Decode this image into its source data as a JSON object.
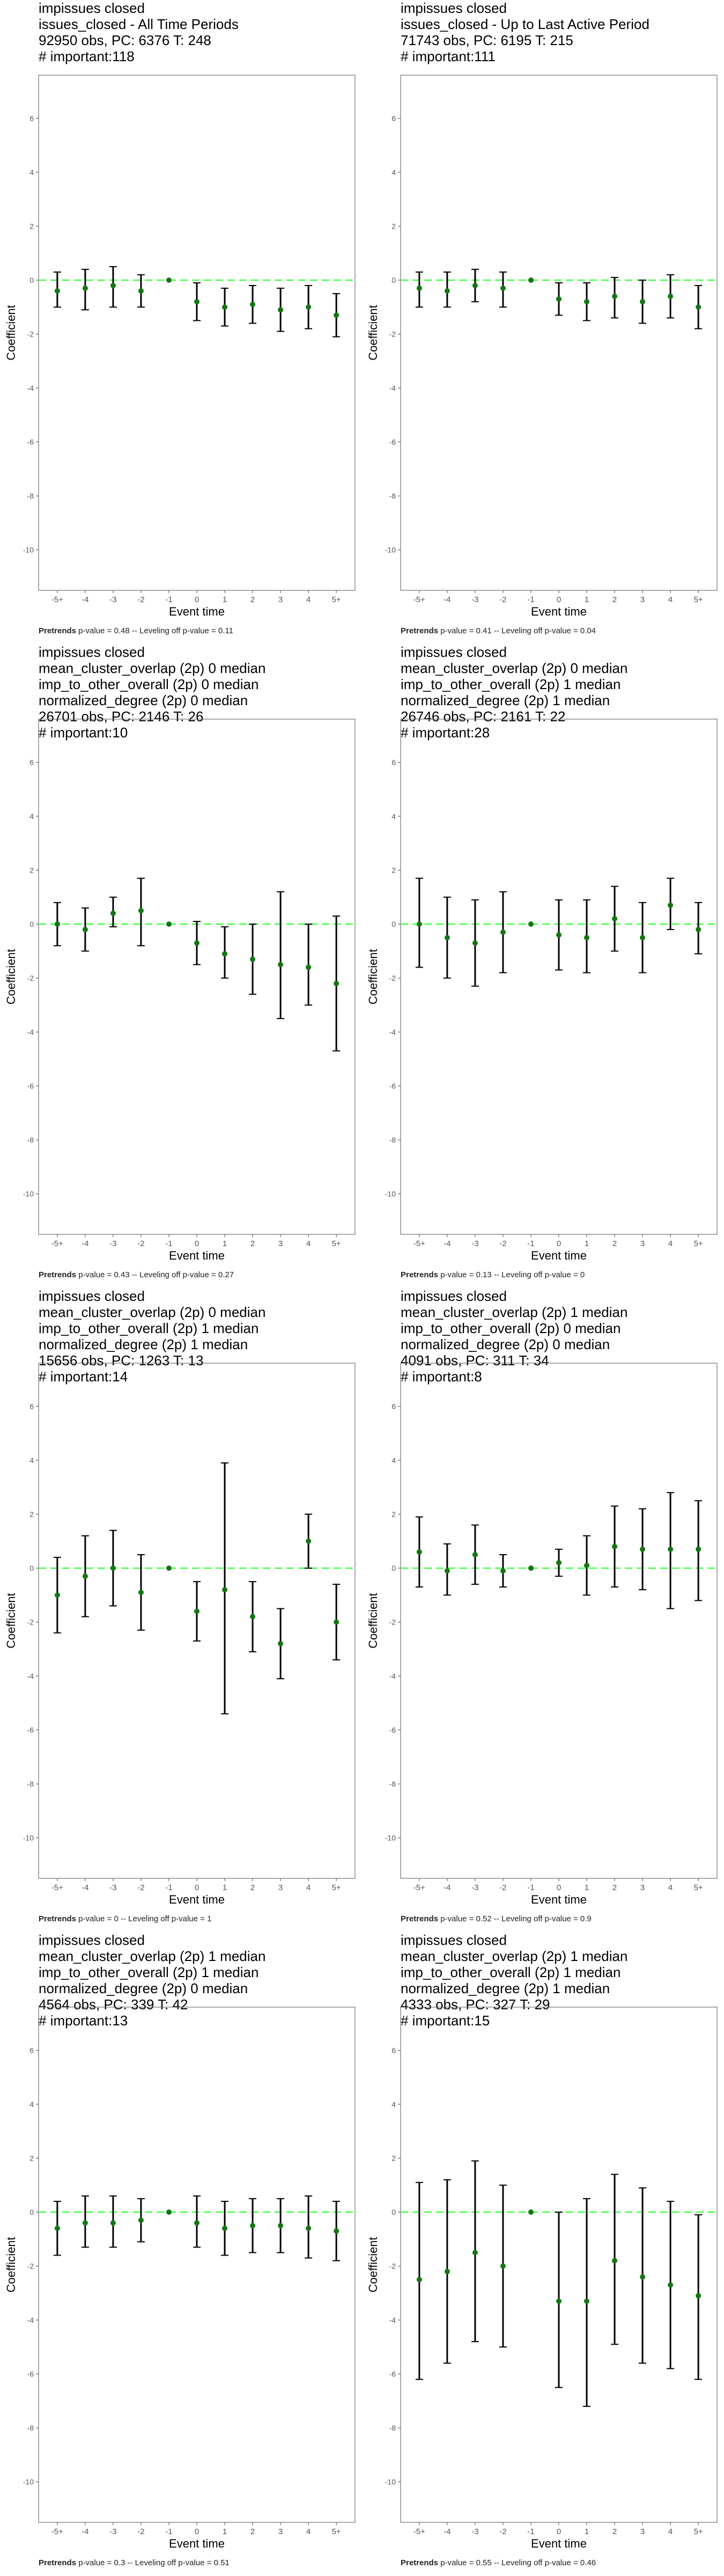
{
  "common": {
    "xlabel": "Event time",
    "ylabel": "Coefficient",
    "x_categories": [
      "-5+",
      "-4",
      "-3",
      "-2",
      "-1",
      "0",
      "1",
      "2",
      "3",
      "4",
      "5+"
    ],
    "yticks": [
      6,
      4,
      2,
      0,
      -2,
      -4,
      -6,
      -8,
      -10
    ],
    "ylim": [
      -11.5,
      7.6
    ],
    "point_color": "#117711",
    "zero_line_color": "#44ff44",
    "pretrends_label": "Pretrends"
  },
  "chart_data": [
    {
      "type": "scatter",
      "header": [
        "impissues closed",
        "issues_closed - All Time Periods",
        "92950 obs, PC: 6376 T: 248",
        "# important:118"
      ],
      "footer": " p-value = 0.48 -- Leveling off p-value = 0.11",
      "x": [
        "-5+",
        "-4",
        "-3",
        "-2",
        "-1",
        "0",
        "1",
        "2",
        "3",
        "4",
        "5+"
      ],
      "y": [
        -0.4,
        -0.3,
        -0.2,
        -0.4,
        0,
        -0.8,
        -1.0,
        -0.9,
        -1.1,
        -1.0,
        -1.3
      ],
      "low": [
        -1.0,
        -1.1,
        -1.0,
        -1.0,
        0,
        -1.5,
        -1.7,
        -1.6,
        -1.9,
        -1.8,
        -2.1
      ],
      "high": [
        0.3,
        0.4,
        0.5,
        0.2,
        0,
        -0.1,
        -0.3,
        -0.2,
        -0.3,
        -0.2,
        -0.5
      ]
    },
    {
      "type": "scatter",
      "header": [
        "impissues closed",
        "issues_closed - Up to Last Active Period",
        "71743 obs, PC: 6195 T: 215",
        "# important:111"
      ],
      "footer": " p-value = 0.41 -- Leveling off p-value = 0.04",
      "x": [
        "-5+",
        "-4",
        "-3",
        "-2",
        "-1",
        "0",
        "1",
        "2",
        "3",
        "4",
        "5+"
      ],
      "y": [
        -0.3,
        -0.4,
        -0.2,
        -0.3,
        0,
        -0.7,
        -0.8,
        -0.6,
        -0.8,
        -0.6,
        -1.0
      ],
      "low": [
        -1.0,
        -1.0,
        -0.8,
        -1.0,
        0,
        -1.3,
        -1.5,
        -1.4,
        -1.6,
        -1.4,
        -1.8
      ],
      "high": [
        0.3,
        0.3,
        0.4,
        0.3,
        0,
        -0.1,
        -0.1,
        0.1,
        0.0,
        0.2,
        -0.2
      ]
    },
    {
      "type": "scatter",
      "header": [
        "impissues closed",
        "mean_cluster_overlap (2p) 0 median",
        "imp_to_other_overall (2p) 0 median",
        "normalized_degree (2p) 0 median",
        "26701 obs, PC: 2146 T: 26",
        "# important:10"
      ],
      "footer": " p-value = 0.43 -- Leveling off p-value = 0.27",
      "x": [
        "-5+",
        "-4",
        "-3",
        "-2",
        "-1",
        "0",
        "1",
        "2",
        "3",
        "4",
        "5+"
      ],
      "y": [
        0.0,
        -0.2,
        0.4,
        0.5,
        0,
        -0.7,
        -1.1,
        -1.3,
        -1.5,
        -1.6,
        -2.2
      ],
      "low": [
        -0.8,
        -1.0,
        -0.1,
        -0.8,
        0,
        -1.5,
        -2.0,
        -2.6,
        -3.5,
        -3.0,
        -4.7
      ],
      "high": [
        0.8,
        0.6,
        1.0,
        1.7,
        0,
        0.1,
        -0.1,
        0.0,
        1.2,
        0.0,
        0.3
      ]
    },
    {
      "type": "scatter",
      "header": [
        "impissues closed",
        "mean_cluster_overlap (2p) 0 median",
        "imp_to_other_overall (2p) 1 median",
        "normalized_degree (2p) 1 median",
        "26746 obs, PC: 2161 T: 22",
        "# important:28"
      ],
      "footer": " p-value = 0.13 -- Leveling off p-value = 0",
      "x": [
        "-5+",
        "-4",
        "-3",
        "-2",
        "-1",
        "0",
        "1",
        "2",
        "3",
        "4",
        "5+"
      ],
      "y": [
        0.0,
        -0.5,
        -0.7,
        -0.3,
        0,
        -0.4,
        -0.5,
        0.2,
        -0.5,
        0.7,
        -0.2
      ],
      "low": [
        -1.6,
        -2.0,
        -2.3,
        -1.8,
        0,
        -1.7,
        -1.8,
        -1.0,
        -1.8,
        -0.2,
        -1.1
      ],
      "high": [
        1.7,
        1.0,
        0.9,
        1.2,
        0,
        0.9,
        0.9,
        1.4,
        0.8,
        1.7,
        0.8
      ]
    },
    {
      "type": "scatter",
      "header": [
        "impissues closed",
        "mean_cluster_overlap (2p) 0 median",
        "imp_to_other_overall (2p) 1 median",
        "normalized_degree (2p) 1 median",
        "15656 obs, PC: 1263 T: 13",
        "# important:14"
      ],
      "footer": " p-value = 0 -- Leveling off p-value = 1",
      "x": [
        "-5+",
        "-4",
        "-3",
        "-2",
        "-1",
        "0",
        "1",
        "2",
        "3",
        "4",
        "5+"
      ],
      "y": [
        -1.0,
        -0.3,
        0.0,
        -0.9,
        0,
        -1.6,
        -0.8,
        -1.8,
        -2.8,
        1.0,
        -2.0
      ],
      "low": [
        -2.4,
        -1.8,
        -1.4,
        -2.3,
        0,
        -2.7,
        -5.4,
        -3.1,
        -4.1,
        0.0,
        -3.4
      ],
      "high": [
        0.4,
        1.2,
        1.4,
        0.5,
        0,
        -0.5,
        3.9,
        -0.5,
        -1.5,
        2.0,
        -0.6
      ]
    },
    {
      "type": "scatter",
      "header": [
        "impissues closed",
        "mean_cluster_overlap (2p) 1 median",
        "imp_to_other_overall (2p) 0 median",
        "normalized_degree (2p) 0 median",
        "4091 obs, PC: 311 T: 34",
        "# important:8"
      ],
      "footer": " p-value = 0.52 -- Leveling off p-value = 0.9",
      "x": [
        "-5+",
        "-4",
        "-3",
        "-2",
        "-1",
        "0",
        "1",
        "2",
        "3",
        "4",
        "5+"
      ],
      "y": [
        0.6,
        -0.1,
        0.5,
        -0.1,
        0,
        0.2,
        0.1,
        0.8,
        0.7,
        0.7,
        0.7
      ],
      "low": [
        -0.7,
        -1.0,
        -0.6,
        -0.7,
        0,
        -0.3,
        -1.0,
        -0.7,
        -0.8,
        -1.5,
        -1.2
      ],
      "high": [
        1.9,
        0.9,
        1.6,
        0.5,
        0,
        0.7,
        1.2,
        2.3,
        2.2,
        2.8,
        2.5
      ]
    },
    {
      "type": "scatter",
      "header": [
        "impissues closed",
        "mean_cluster_overlap (2p) 1 median",
        "imp_to_other_overall (2p) 1 median",
        "normalized_degree (2p) 0 median",
        "4564 obs, PC: 339 T: 42",
        "# important:13"
      ],
      "footer": " p-value = 0.3 -- Leveling off p-value = 0.51",
      "x": [
        "-5+",
        "-4",
        "-3",
        "-2",
        "-1",
        "0",
        "1",
        "2",
        "3",
        "4",
        "5+"
      ],
      "y": [
        -0.6,
        -0.4,
        -0.4,
        -0.3,
        0,
        -0.4,
        -0.6,
        -0.5,
        -0.5,
        -0.6,
        -0.7
      ],
      "low": [
        -1.6,
        -1.3,
        -1.3,
        -1.1,
        0,
        -1.3,
        -1.6,
        -1.5,
        -1.5,
        -1.7,
        -1.8
      ],
      "high": [
        0.4,
        0.6,
        0.6,
        0.5,
        0,
        0.6,
        0.4,
        0.5,
        0.5,
        0.6,
        0.4
      ]
    },
    {
      "type": "scatter",
      "header": [
        "impissues closed",
        "mean_cluster_overlap (2p) 1 median",
        "imp_to_other_overall (2p) 1 median",
        "normalized_degree (2p) 1 median",
        "4333 obs, PC: 327 T: 29",
        "# important:15"
      ],
      "footer": " p-value = 0.55 -- Leveling off p-value = 0.46",
      "x": [
        "-5+",
        "-4",
        "-3",
        "-2",
        "-1",
        "0",
        "1",
        "2",
        "3",
        "4",
        "5+"
      ],
      "y": [
        -2.5,
        -2.2,
        -1.5,
        -2.0,
        0,
        -3.3,
        -3.3,
        -1.8,
        -2.4,
        -2.7,
        -3.1
      ],
      "low": [
        -6.2,
        -5.6,
        -4.8,
        -5.0,
        0,
        -6.5,
        -7.2,
        -4.9,
        -5.6,
        -5.8,
        -6.2
      ],
      "high": [
        1.1,
        1.2,
        1.9,
        1.0,
        0,
        0.0,
        0.5,
        1.4,
        0.9,
        0.4,
        -0.1
      ]
    }
  ]
}
